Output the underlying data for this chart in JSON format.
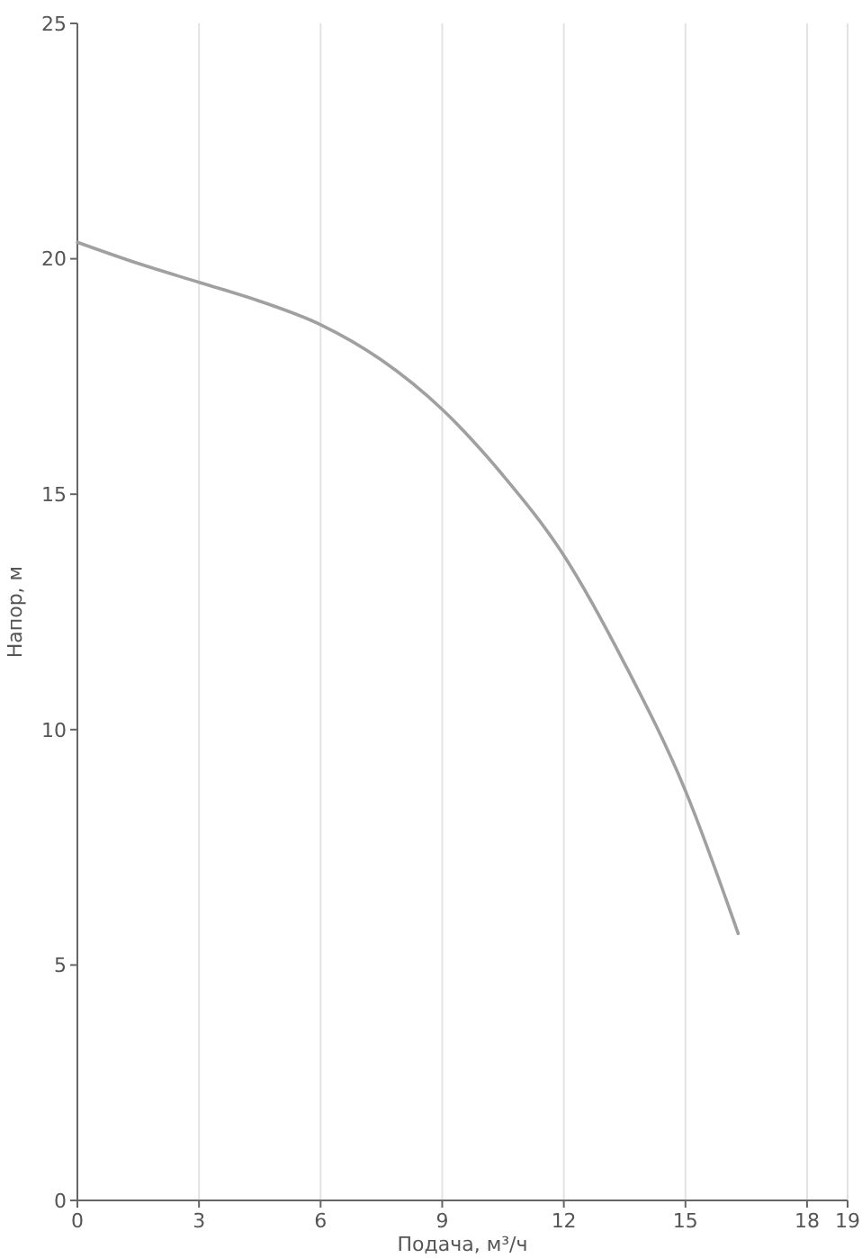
{
  "chart_data": {
    "type": "line",
    "xlabel": "Подача, м³/ч",
    "ylabel": "Напор, м",
    "xlim": [
      0,
      19
    ],
    "ylim": [
      0,
      25
    ],
    "xticks": [
      0,
      3,
      6,
      9,
      12,
      15,
      18,
      19
    ],
    "yticks": [
      0,
      5,
      10,
      15,
      20,
      25
    ],
    "grid": "x",
    "marker": "none",
    "line_style": "solid",
    "series": [
      {
        "color": "#a0a0a0",
        "x": [
          0,
          1.5,
          3,
          4.5,
          6,
          7.5,
          9,
          10.5,
          12,
          13.5,
          15,
          16.3
        ],
        "values": [
          20.35,
          19.9,
          19.5,
          19.1,
          18.6,
          17.85,
          16.8,
          15.4,
          13.7,
          11.4,
          8.7,
          5.67
        ]
      }
    ]
  }
}
